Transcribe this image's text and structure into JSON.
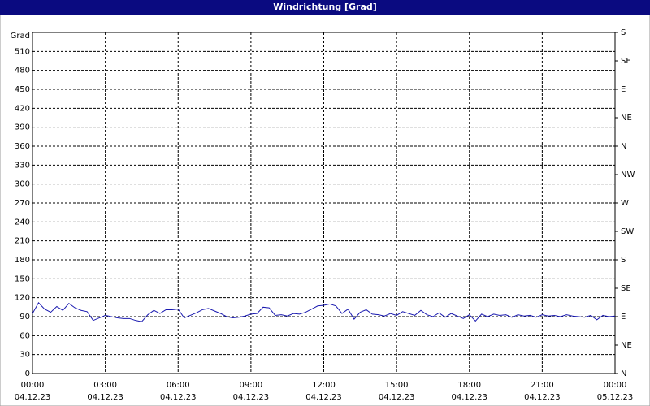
{
  "chart_data": {
    "type": "line",
    "title": "Windrichtung [Grad]",
    "y_label": "Grad",
    "xlim": [
      0,
      24
    ],
    "xticks": [
      {
        "value": 0,
        "label": "00:00"
      },
      {
        "value": 3,
        "label": "03:00"
      },
      {
        "value": 6,
        "label": "06:00"
      },
      {
        "value": 9,
        "label": "09:00"
      },
      {
        "value": 12,
        "label": "12:00"
      },
      {
        "value": 15,
        "label": "15:00"
      },
      {
        "value": 18,
        "label": "18:00"
      },
      {
        "value": 21,
        "label": "21:00"
      },
      {
        "value": 24,
        "label": "00:00"
      }
    ],
    "xtick_dates": [
      "04.12.23",
      "04.12.23",
      "04.12.23",
      "04.12.23",
      "04.12.23",
      "04.12.23",
      "04.12.23",
      "04.12.23",
      "05.12.23"
    ],
    "ylim": [
      0,
      540
    ],
    "yticks": [
      0,
      30,
      60,
      90,
      120,
      150,
      180,
      210,
      240,
      270,
      300,
      330,
      360,
      390,
      420,
      450,
      480,
      510
    ],
    "y2lim": [
      0,
      540
    ],
    "y2ticks": [
      {
        "value": 0,
        "label": "N"
      },
      {
        "value": 45,
        "label": "NE"
      },
      {
        "value": 90,
        "label": "E"
      },
      {
        "value": 135,
        "label": "SE"
      },
      {
        "value": 180,
        "label": "S"
      },
      {
        "value": 225,
        "label": "SW"
      },
      {
        "value": 270,
        "label": "W"
      },
      {
        "value": 315,
        "label": "NW"
      },
      {
        "value": 360,
        "label": "N"
      },
      {
        "value": 405,
        "label": "NE"
      },
      {
        "value": 450,
        "label": "E"
      },
      {
        "value": 495,
        "label": "SE"
      },
      {
        "value": 540,
        "label": "S"
      }
    ],
    "grid": true,
    "x": [
      0,
      0.25,
      0.5,
      0.75,
      1,
      1.25,
      1.5,
      1.75,
      2,
      2.25,
      2.5,
      2.75,
      3,
      3.25,
      3.5,
      3.75,
      4,
      4.25,
      4.5,
      4.75,
      5,
      5.25,
      5.5,
      5.75,
      6,
      6.25,
      6.5,
      6.75,
      7,
      7.25,
      7.5,
      7.75,
      8,
      8.25,
      8.5,
      8.75,
      9,
      9.25,
      9.5,
      9.75,
      10,
      10.25,
      10.5,
      10.75,
      11,
      11.25,
      11.5,
      11.75,
      12,
      12.25,
      12.5,
      12.75,
      13,
      13.25,
      13.5,
      13.75,
      14,
      14.25,
      14.5,
      14.75,
      15,
      15.25,
      15.5,
      15.75,
      16,
      16.25,
      16.5,
      16.75,
      17,
      17.25,
      17.5,
      17.75,
      18,
      18.25,
      18.5,
      18.75,
      19,
      19.25,
      19.5,
      19.75,
      20,
      20.25,
      20.5,
      20.75,
      21,
      21.25,
      21.5,
      21.75,
      22,
      22.25,
      22.5,
      22.75,
      23,
      23.25,
      23.5,
      23.75,
      24
    ],
    "series": [
      {
        "color": "#1a1ab0",
        "values": [
          95,
          112,
          102,
          97,
          106,
          100,
          111,
          104,
          100,
          98,
          84,
          88,
          92,
          90,
          88,
          87,
          87,
          84,
          82,
          93,
          100,
          95,
          101,
          101,
          102,
          88,
          92,
          96,
          101,
          103,
          99,
          95,
          90,
          88,
          89,
          91,
          94,
          95,
          105,
          104,
          92,
          93,
          91,
          95,
          94,
          97,
          102,
          107,
          108,
          110,
          107,
          95,
          102,
          86,
          97,
          101,
          94,
          93,
          91,
          95,
          92,
          98,
          95,
          92,
          100,
          93,
          90,
          96,
          89,
          95,
          91,
          87,
          93,
          83,
          94,
          90,
          94,
          92,
          93,
          89,
          93,
          91,
          92,
          89,
          93,
          91,
          92,
          90,
          93,
          91,
          90,
          89,
          92,
          85,
          92,
          90,
          91
        ]
      }
    ]
  }
}
